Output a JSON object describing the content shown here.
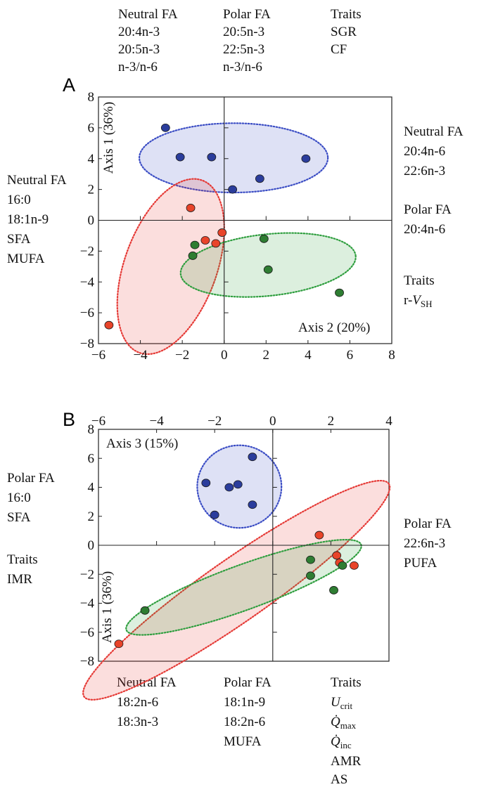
{
  "chart_data": [
    {
      "panel": "A",
      "type": "scatter",
      "x_axis_title": "Axis 2 (20%)",
      "y_axis_title": "Axis 1 (36%)",
      "xlim": [
        -6,
        8
      ],
      "ylim": [
        -8,
        8
      ],
      "x_ticks": [
        "−6",
        "−4",
        "−2",
        "0",
        "2",
        "4",
        "6",
        "8"
      ],
      "x_tick_values": [
        -6,
        -4,
        -2,
        0,
        2,
        4,
        6,
        8
      ],
      "y_ticks": [
        "8",
        "6",
        "4",
        "2",
        "0",
        "−2",
        "−4",
        "−6",
        "−8"
      ],
      "y_tick_values": [
        8,
        6,
        4,
        2,
        0,
        -2,
        -4,
        -6,
        -8
      ],
      "grid": false,
      "series": [
        {
          "color": "#2b3d9c",
          "points": [
            [
              -2.8,
              6.0
            ],
            [
              -2.1,
              4.1
            ],
            [
              -0.6,
              4.1
            ],
            [
              0.4,
              2.0
            ],
            [
              1.7,
              2.7
            ],
            [
              3.9,
              4.0
            ]
          ]
        },
        {
          "color": "#e8442a",
          "points": [
            [
              -1.6,
              0.8
            ],
            [
              -0.4,
              -1.5
            ],
            [
              -0.1,
              -0.8
            ],
            [
              -0.9,
              -1.3
            ],
            [
              -5.5,
              -6.8
            ]
          ]
        },
        {
          "color": "#2e7d32",
          "points": [
            [
              -1.4,
              -1.6
            ],
            [
              -1.5,
              -2.3
            ],
            [
              1.9,
              -1.2
            ],
            [
              2.1,
              -3.2
            ],
            [
              5.5,
              -4.7
            ]
          ]
        }
      ],
      "ellipses": [
        {
          "color": "#3a4cc4",
          "center": [
            0.45,
            4.05
          ],
          "rx": 4.5,
          "ry": 2.25,
          "angle_deg": 0
        },
        {
          "color": "#e53935",
          "center": [
            -2.55,
            -3.0
          ],
          "rx": 2.2,
          "ry": 5.95,
          "angle_deg": 20
        },
        {
          "color": "#2e9e3e",
          "center": [
            2.1,
            -2.9
          ],
          "rx": 4.2,
          "ry": 2.0,
          "angle_deg": -6
        }
      ],
      "annotations": {
        "top": [
          [
            "Neutral FA",
            "20:4n-3",
            "20:5n-3",
            "n-3/n-6"
          ],
          [
            "Polar FA",
            "20:5n-3",
            "22:5n-3",
            "n-3/n-6"
          ],
          [
            "Traits",
            "SGR",
            "CF"
          ]
        ],
        "left": [
          "Neutral FA",
          "16:0",
          "18:1n-9",
          "SFA",
          "MUFA"
        ],
        "right": [
          [
            "Neutral FA",
            "20:4n-6",
            "22:6n-3"
          ],
          [
            "Polar FA",
            "20:4n-6"
          ],
          [
            "Traits",
            "r-V_SH"
          ]
        ]
      }
    },
    {
      "panel": "B",
      "type": "scatter",
      "x_axis_title": "Axis 3 (15%)",
      "y_axis_title": "Axis 1 (36%)",
      "xlim": [
        -6,
        4
      ],
      "ylim": [
        -8,
        8
      ],
      "x_ticks": [
        "−6",
        "−4",
        "−2",
        "0",
        "2",
        "4"
      ],
      "x_tick_values": [
        -6,
        -4,
        -2,
        0,
        2,
        4
      ],
      "y_ticks": [
        "8",
        "6",
        "4",
        "2",
        "0",
        "−2",
        "−4",
        "−6",
        "−8"
      ],
      "y_tick_values": [
        8,
        6,
        4,
        2,
        0,
        -2,
        -4,
        -6,
        -8
      ],
      "grid": false,
      "series": [
        {
          "color": "#2b3d9c",
          "points": [
            [
              -0.7,
              6.1
            ],
            [
              -2.3,
              4.3
            ],
            [
              -1.5,
              4.0
            ],
            [
              -1.2,
              4.2
            ],
            [
              -2.0,
              2.1
            ],
            [
              -0.7,
              2.8
            ]
          ]
        },
        {
          "color": "#e8442a",
          "points": [
            [
              1.6,
              0.7
            ],
            [
              2.2,
              -0.7
            ],
            [
              2.3,
              -1.2
            ],
            [
              2.8,
              -1.4
            ],
            [
              -5.3,
              -6.8
            ]
          ]
        },
        {
          "color": "#2e7d32",
          "points": [
            [
              1.3,
              -1.0
            ],
            [
              1.3,
              -2.1
            ],
            [
              2.4,
              -1.4
            ],
            [
              2.1,
              -3.1
            ],
            [
              -4.4,
              -4.5
            ]
          ]
        }
      ],
      "ellipses": [
        {
          "color": "#3a4cc4",
          "center": [
            -1.15,
            4.05
          ],
          "rx": 1.45,
          "ry": 2.85,
          "angle_deg": 0
        },
        {
          "color": "#e53935",
          "center": [
            -1.25,
            -3.1
          ],
          "rx": 6.4,
          "ry": 2.15,
          "angle_deg": -35
        },
        {
          "color": "#2e9e3e",
          "center": [
            -1.0,
            -2.9
          ],
          "rx": 4.3,
          "ry": 1.55,
          "angle_deg": -20
        }
      ],
      "annotations": {
        "left": [
          [
            "Polar FA",
            "16:0",
            "SFA"
          ],
          [
            "Traits",
            "IMR"
          ]
        ],
        "right": [
          "Polar FA",
          "22:6n-3",
          "PUFA"
        ],
        "bottom": [
          [
            "Neutral FA",
            "18:2n-6",
            "18:3n-3"
          ],
          [
            "Polar FA",
            "18:1n-9",
            "18:2n-6",
            "MUFA"
          ],
          [
            "Traits",
            "U_crit",
            "Q̇_max",
            "Q̇_inc",
            "AMR",
            "AS"
          ]
        ]
      }
    }
  ],
  "panel_labels": [
    "A",
    "B"
  ]
}
